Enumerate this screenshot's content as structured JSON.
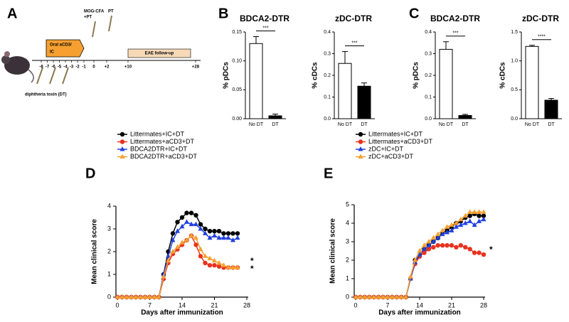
{
  "schematic": {
    "panel": "A",
    "treatment": [
      "Oral aCD3/",
      "IC"
    ],
    "immunization": [
      "MOG-CFA",
      "+PT"
    ],
    "boost": "PT",
    "followup": "EAE follow-up",
    "toxin": "diphtheria toxin (DT)",
    "timeline": [
      "-8",
      "-7",
      "-6",
      "-5",
      "-4",
      "-3",
      "-2",
      "-1",
      "0",
      "+2",
      "+10",
      "+28"
    ]
  },
  "chart_data": [
    {
      "type": "bar",
      "panel": "B",
      "title": "BDCA2-DTR",
      "ylabel": "% pDCs",
      "categories": [
        "No DT",
        "DT"
      ],
      "values": [
        0.13,
        0.005
      ],
      "errors": [
        0.012,
        0.003
      ],
      "colors": [
        "#ffffff",
        "#000000"
      ],
      "ylim": [
        0,
        0.15
      ],
      "yticks": [
        {
          "value": 0,
          "label": "0.00"
        },
        {
          "value": 0.05,
          "label": "0.05"
        },
        {
          "value": 0.1,
          "label": "0.10"
        },
        {
          "value": 0.15,
          "label": "0.15"
        }
      ],
      "annotation": "***"
    },
    {
      "type": "bar",
      "title": "zDC-DTR",
      "ylabel": "% cDCs",
      "categories": [
        "No DT",
        "DT"
      ],
      "values": [
        0.255,
        0.15
      ],
      "errors": [
        0.055,
        0.015
      ],
      "colors": [
        "#ffffff",
        "#000000"
      ],
      "ylim": [
        0,
        0.4
      ],
      "yticks": [
        {
          "value": 0,
          "label": "0.0"
        },
        0.1,
        0.2,
        0.3,
        0.4
      ],
      "annotation": "***"
    },
    {
      "type": "bar",
      "panel": "C",
      "title": "BDCA2-DTR",
      "ylabel": "% pDCs",
      "categories": [
        "No DT",
        "DT"
      ],
      "values": [
        0.32,
        0.015
      ],
      "errors": [
        0.035,
        0.005
      ],
      "colors": [
        "#ffffff",
        "#000000"
      ],
      "ylim": [
        0,
        0.4
      ],
      "yticks": [
        {
          "value": 0,
          "label": "0.0"
        },
        0.1,
        0.2,
        0.3,
        0.4
      ],
      "annotation": "***"
    },
    {
      "type": "bar",
      "title": "zDC-DTR",
      "ylabel": "% cDCs",
      "categories": [
        "No DT",
        "DT"
      ],
      "values": [
        1.25,
        0.32
      ],
      "errors": [
        0.02,
        0.03
      ],
      "colors": [
        "#ffffff",
        "#000000"
      ],
      "ylim": [
        0,
        1.5
      ],
      "yticks": [
        {
          "value": 0,
          "label": "0.0"
        },
        0.5,
        {
          "value": 1,
          "label": "1.0"
        },
        1.5
      ],
      "annotation": "****"
    },
    {
      "type": "line",
      "panel": "D",
      "xlabel": "Days after immunization",
      "ylabel": "Mean clinical score",
      "x": [
        0,
        1,
        2,
        3,
        4,
        5,
        6,
        7,
        8,
        9,
        10,
        11,
        12,
        13,
        14,
        15,
        16,
        17,
        18,
        19,
        20,
        21,
        22,
        23,
        24,
        25,
        26
      ],
      "series": [
        {
          "name": "Littermates+IC+DT",
          "color": "#000000",
          "marker": "circle",
          "values": [
            0,
            0,
            0,
            0,
            0,
            0,
            0,
            0,
            0,
            0,
            1.0,
            2.0,
            2.8,
            3.3,
            3.5,
            3.7,
            3.7,
            3.6,
            3.2,
            3.0,
            2.9,
            2.9,
            2.9,
            2.8,
            2.8,
            2.8,
            2.8
          ]
        },
        {
          "name": "Littermates+aCD3+DT",
          "color": "#e8321e",
          "marker": "circle",
          "values": [
            0,
            0,
            0,
            0,
            0,
            0,
            0,
            0,
            0,
            0,
            0.8,
            1.5,
            1.9,
            2.1,
            2.3,
            2.5,
            2.7,
            2.3,
            1.8,
            1.5,
            1.4,
            1.4,
            1.35,
            1.3,
            1.3,
            1.3,
            1.3
          ]
        },
        {
          "name": "BDCA2DTR+IC+DT",
          "color": "#2040e0",
          "marker": "triangle",
          "values": [
            0,
            0,
            0,
            0,
            0,
            0,
            0,
            0,
            0,
            0,
            1.0,
            1.8,
            2.5,
            2.9,
            3.1,
            3.3,
            3.2,
            3.2,
            3.0,
            2.8,
            2.6,
            2.7,
            2.6,
            2.6,
            2.6,
            2.5,
            2.6
          ]
        },
        {
          "name": "BDCA2DTR+aCD3+DT",
          "color": "#f5a030",
          "marker": "triangle",
          "values": [
            0,
            0,
            0,
            0,
            0,
            0,
            0,
            0,
            0,
            0,
            0.9,
            1.6,
            2.0,
            2.2,
            2.4,
            2.5,
            2.7,
            2.6,
            2.1,
            1.8,
            1.7,
            1.6,
            1.5,
            1.4,
            1.3,
            1.3,
            1.3
          ]
        }
      ],
      "xlim": [
        0,
        28
      ],
      "xticks": [
        0,
        7,
        14,
        21,
        28
      ],
      "ylim": [
        0,
        4
      ],
      "yticks": [
        0,
        1,
        2,
        3,
        4
      ],
      "annotations": [
        "*",
        "*"
      ]
    },
    {
      "type": "line",
      "panel": "E",
      "xlabel": "Days after immunization",
      "ylabel": "Mean clinical score",
      "x": [
        0,
        1,
        2,
        3,
        4,
        5,
        6,
        7,
        8,
        9,
        10,
        11,
        12,
        13,
        14,
        15,
        16,
        17,
        18,
        19,
        20,
        21,
        22,
        23,
        24,
        25,
        26,
        27,
        28
      ],
      "series": [
        {
          "name": "Littermates+IC+DT",
          "color": "#000000",
          "marker": "circle",
          "values": [
            0,
            0,
            0,
            0,
            0,
            0,
            0,
            0,
            0,
            0,
            0,
            0,
            1.0,
            2.0,
            2.3,
            2.6,
            2.8,
            3.0,
            3.2,
            3.5,
            3.6,
            3.8,
            4.0,
            4.1,
            4.3,
            4.4,
            4.5,
            4.4,
            4.4
          ]
        },
        {
          "name": "Littermates+aCD3+DT",
          "color": "#e8321e",
          "marker": "circle",
          "values": [
            0,
            0,
            0,
            0,
            0,
            0,
            0,
            0,
            0,
            0,
            0,
            0,
            1.0,
            1.8,
            2.2,
            2.4,
            2.6,
            2.7,
            2.8,
            2.8,
            2.8,
            2.8,
            2.7,
            2.8,
            2.7,
            2.6,
            2.4,
            2.4,
            2.3
          ]
        },
        {
          "name": "zDC+IC+DT",
          "color": "#2040e0",
          "marker": "triangle",
          "values": [
            0,
            0,
            0,
            0,
            0,
            0,
            0,
            0,
            0,
            0,
            0,
            0,
            1.0,
            1.9,
            2.3,
            2.6,
            2.8,
            3.0,
            3.2,
            3.4,
            3.5,
            3.6,
            3.8,
            3.9,
            4.0,
            4.1,
            3.9,
            4.1,
            4.2
          ]
        },
        {
          "name": "zDC+aCD3+DT",
          "color": "#f5a030",
          "marker": "triangle",
          "values": [
            0,
            0,
            0,
            0,
            0,
            0,
            0,
            0,
            0,
            0,
            0,
            0,
            1.1,
            2.0,
            2.5,
            2.8,
            3.0,
            3.2,
            3.4,
            3.6,
            3.8,
            3.9,
            4.0,
            4.2,
            4.4,
            4.6,
            4.6,
            4.6,
            4.6
          ]
        }
      ],
      "xlim": [
        0,
        28
      ],
      "xticks": [
        0,
        7,
        14,
        21,
        28
      ],
      "ylim": [
        0,
        5
      ],
      "yticks": [
        0,
        1,
        2,
        3,
        4,
        5
      ],
      "annotations": [
        "*"
      ]
    }
  ]
}
